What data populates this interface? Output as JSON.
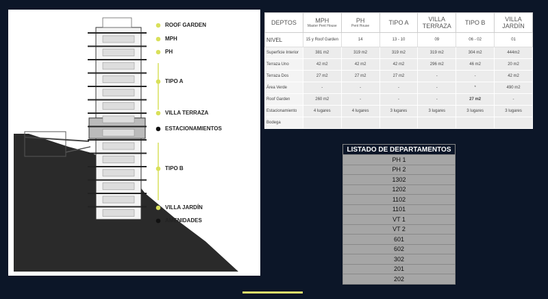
{
  "legend": [
    "ROOF GARDEN",
    "MPH",
    "PH",
    "TIPO A",
    "VILLA TERRAZA",
    "ESTACIONAMIENTOS",
    "TIPO B",
    "VILLA JARDÍN",
    "AMENIDADES"
  ],
  "table": {
    "header": [
      {
        "title": "DEPTOS"
      },
      {
        "title": "MPH",
        "subtitle": "Master Pent House"
      },
      {
        "title": "PH",
        "subtitle": "Pent House"
      },
      {
        "title": "TIPO A"
      },
      {
        "title": "VILLA TERRAZA"
      },
      {
        "title": "TIPO B"
      },
      {
        "title": "VILLA JARDÍN"
      }
    ],
    "rows": [
      [
        "NIVEL",
        "15 y Roof Garden",
        "14",
        "13 - 10",
        "09",
        "06 - 02",
        "01"
      ],
      [
        "Superficie Interior",
        "381 m2",
        "319 m2",
        "319 m2",
        "319 m2",
        "304 m2",
        "444m2"
      ],
      [
        "Terraza Uno",
        "42 m2",
        "42 m2",
        "42 m2",
        "296 m2",
        "46 m2",
        "20 m2"
      ],
      [
        "Terraza Dos",
        "27 m2",
        "27 m2",
        "27 m2",
        "-",
        "-",
        "42 m2"
      ],
      [
        "Área Verde",
        "-",
        "-",
        "-",
        "-",
        "*",
        "490 m2"
      ],
      [
        "Roof Garden",
        "260 m2",
        "-",
        "-",
        "-",
        "27 m2",
        "-"
      ],
      [
        "Estacionamiento",
        "4 lugares",
        "4 lugares",
        "3 lugares",
        "3 lugares",
        "3 lugares",
        "3 lugares"
      ],
      [
        "Bodega"
      ]
    ]
  },
  "list": {
    "title": "LISTADO DE DEPARTAMENTOS",
    "items": [
      "PH 1",
      "PH 2",
      "1302",
      "1202",
      "1102",
      "1101",
      "VT 1",
      "VT 2",
      "601",
      "602",
      "302",
      "201",
      "202"
    ]
  }
}
